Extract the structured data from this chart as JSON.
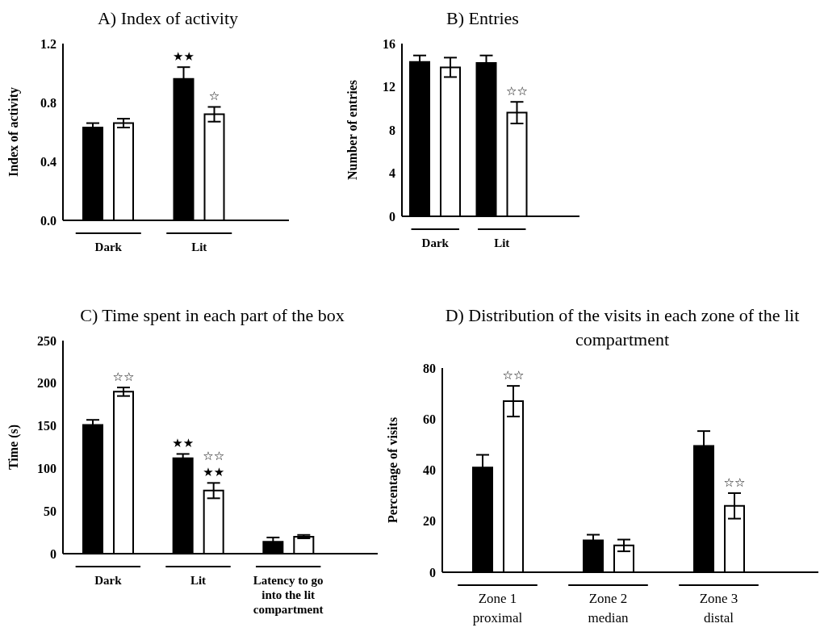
{
  "chart_data": [
    {
      "type": "bar",
      "title": "A) Index of activity",
      "ylabel": "Index of activity",
      "categories": [
        "Dark",
        "Lit"
      ],
      "series": [
        {
          "color": "#000000",
          "values": [
            0.63,
            0.96
          ],
          "errors": [
            0.03,
            0.08
          ],
          "value_labels": [
            null,
            "★★"
          ]
        },
        {
          "color": "#ffffff",
          "values": [
            0.66,
            0.72
          ],
          "errors": [
            0.03,
            0.05
          ],
          "value_labels": [
            null,
            "☆"
          ]
        }
      ],
      "ylim": [
        0,
        1.2
      ],
      "yticks": [
        {
          "value": 0,
          "label": "0.0"
        },
        0.4,
        0.8,
        1.2
      ]
    },
    {
      "type": "bar",
      "title": "B) Entries",
      "ylabel": "Number of entries",
      "categories": [
        "Dark",
        "Lit"
      ],
      "series": [
        {
          "color": "#000000",
          "values": [
            14.3,
            14.2
          ],
          "errors": [
            0.6,
            0.7
          ]
        },
        {
          "color": "#ffffff",
          "values": [
            13.8,
            9.6
          ],
          "errors": [
            0.9,
            1.0
          ],
          "value_labels": [
            null,
            "☆☆"
          ]
        }
      ],
      "ylim": [
        0,
        16
      ],
      "yticks": [
        0,
        4,
        8,
        12,
        16
      ]
    },
    {
      "type": "bar",
      "title": "C) Time spent in each part of the box",
      "ylabel": "Time (s)",
      "categories": [
        "Dark",
        "Lit",
        "Latency to go into the lit compartment"
      ],
      "series": [
        {
          "color": "#000000",
          "values": [
            151,
            112,
            14
          ],
          "errors": [
            6,
            5,
            5
          ],
          "value_labels": [
            null,
            "★★",
            null
          ]
        },
        {
          "color": "#ffffff",
          "values": [
            190,
            74,
            20
          ],
          "errors": [
            5,
            9,
            2
          ],
          "value_labels": [
            "☆☆",
            "☆☆\n★★",
            null
          ]
        }
      ],
      "ylim": [
        0,
        250
      ],
      "yticks": [
        0,
        50,
        100,
        150,
        200,
        250
      ]
    },
    {
      "type": "bar",
      "title": "D) Distribution of the visits in each zone of the lit compartment",
      "ylabel": "Percentage of visits",
      "categories": [
        "Zone 1\nproximal",
        "Zone 2\nmedian",
        "Zone 3\ndistal"
      ],
      "series": [
        {
          "color": "#000000",
          "values": [
            41,
            12.5,
            49.5
          ],
          "errors": [
            5,
            2.2,
            5.8
          ]
        },
        {
          "color": "#ffffff",
          "values": [
            67,
            10.5,
            26
          ],
          "errors": [
            6,
            2.3,
            5
          ],
          "value_labels": [
            "☆☆",
            null,
            "☆☆"
          ]
        }
      ],
      "ylim": [
        0,
        80
      ],
      "yticks": [
        0,
        20,
        40,
        60,
        80
      ]
    }
  ]
}
